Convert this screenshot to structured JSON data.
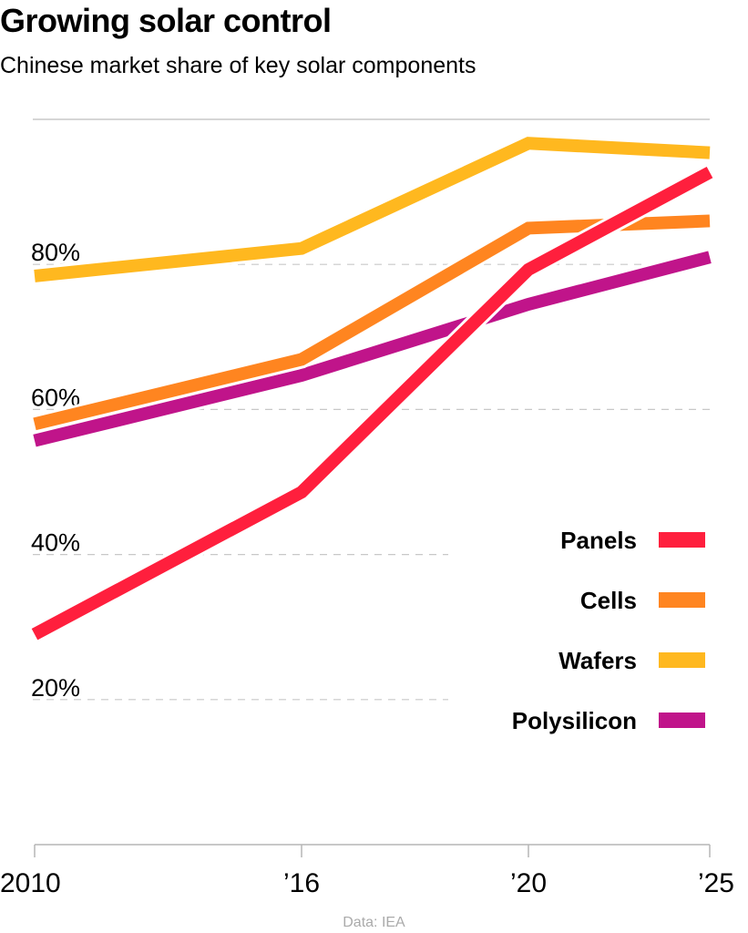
{
  "chart_data": {
    "type": "line",
    "title": "Growing solar control",
    "subtitle": "Chinese market share of key solar components",
    "source": "Data: IEA",
    "x": [
      2010,
      2016,
      2020,
      2025
    ],
    "x_tick_labels": [
      "2010",
      "’16",
      "’20",
      "’25"
    ],
    "ylim": [
      0,
      100
    ],
    "y_ticks": [
      20,
      40,
      60,
      80
    ],
    "y_tick_labels": [
      "20%",
      "40%",
      "60%",
      "80%"
    ],
    "grid": true,
    "legend_position": "right",
    "series": [
      {
        "name": "Panels",
        "color": "#ff1f3d",
        "values": [
          29,
          48.6,
          79.3,
          92.7
        ]
      },
      {
        "name": "Cells",
        "color": "#ff8520",
        "values": [
          58,
          66.9,
          85,
          86
        ]
      },
      {
        "name": "Wafers",
        "color": "#ffb81f",
        "values": [
          78.4,
          82.2,
          96.7,
          95.4
        ]
      },
      {
        "name": "Polysilicon",
        "color": "#c0148a",
        "values": [
          55.7,
          64.7,
          74.5,
          81
        ]
      }
    ]
  }
}
